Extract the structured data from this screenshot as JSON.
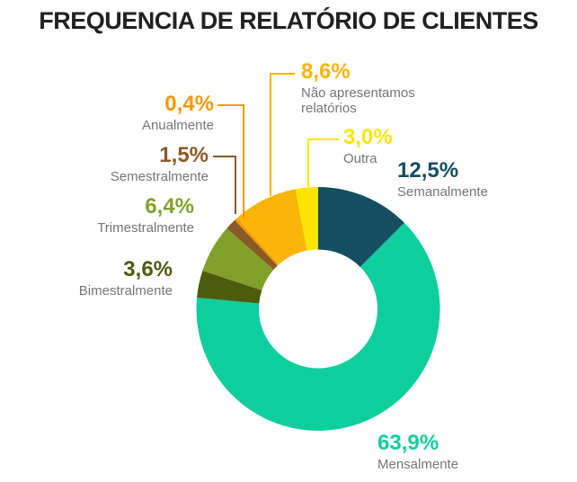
{
  "title": "FREQUENCIA DE RELATÓRIO DE CLIENTES",
  "colors": {
    "title": "#212121",
    "sublabel_gray": "#757575",
    "background": "#FFFFFF"
  },
  "chart_data": {
    "type": "pie",
    "variant": "donut",
    "title": "FREQUENCIA DE RELATÓRIO DE CLIENTES",
    "unit": "%",
    "total_percent": 99.9,
    "start_angle_deg": 0,
    "direction": "clockwise",
    "inner_radius_ratio": 0.487,
    "legend_position": "callouts",
    "segments": [
      {
        "label": "Semanalmente",
        "value": 12.5,
        "display": "12,5%",
        "color": "#144E60"
      },
      {
        "label": "Mensalmente",
        "value": 63.9,
        "display": "63,9%",
        "color": "#0FCE9E"
      },
      {
        "label": "Bimestralmente",
        "value": 3.6,
        "display": "3,6%",
        "color": "#4D5B0E"
      },
      {
        "label": "Trimestralmente",
        "value": 6.4,
        "display": "6,4%",
        "color": "#81A12B"
      },
      {
        "label": "Semestralmente",
        "value": 1.5,
        "display": "1,5%",
        "color": "#8A5A26"
      },
      {
        "label": "Anualmente",
        "value": 0.4,
        "display": "0,4%",
        "color": "#F59803"
      },
      {
        "label": "Não apresentamos relatórios",
        "value": 8.6,
        "display": "8,6%",
        "color": "#FBB40A"
      },
      {
        "label": "Outra",
        "value": 3.0,
        "display": "3,0%",
        "color": "#FCE502"
      }
    ]
  }
}
